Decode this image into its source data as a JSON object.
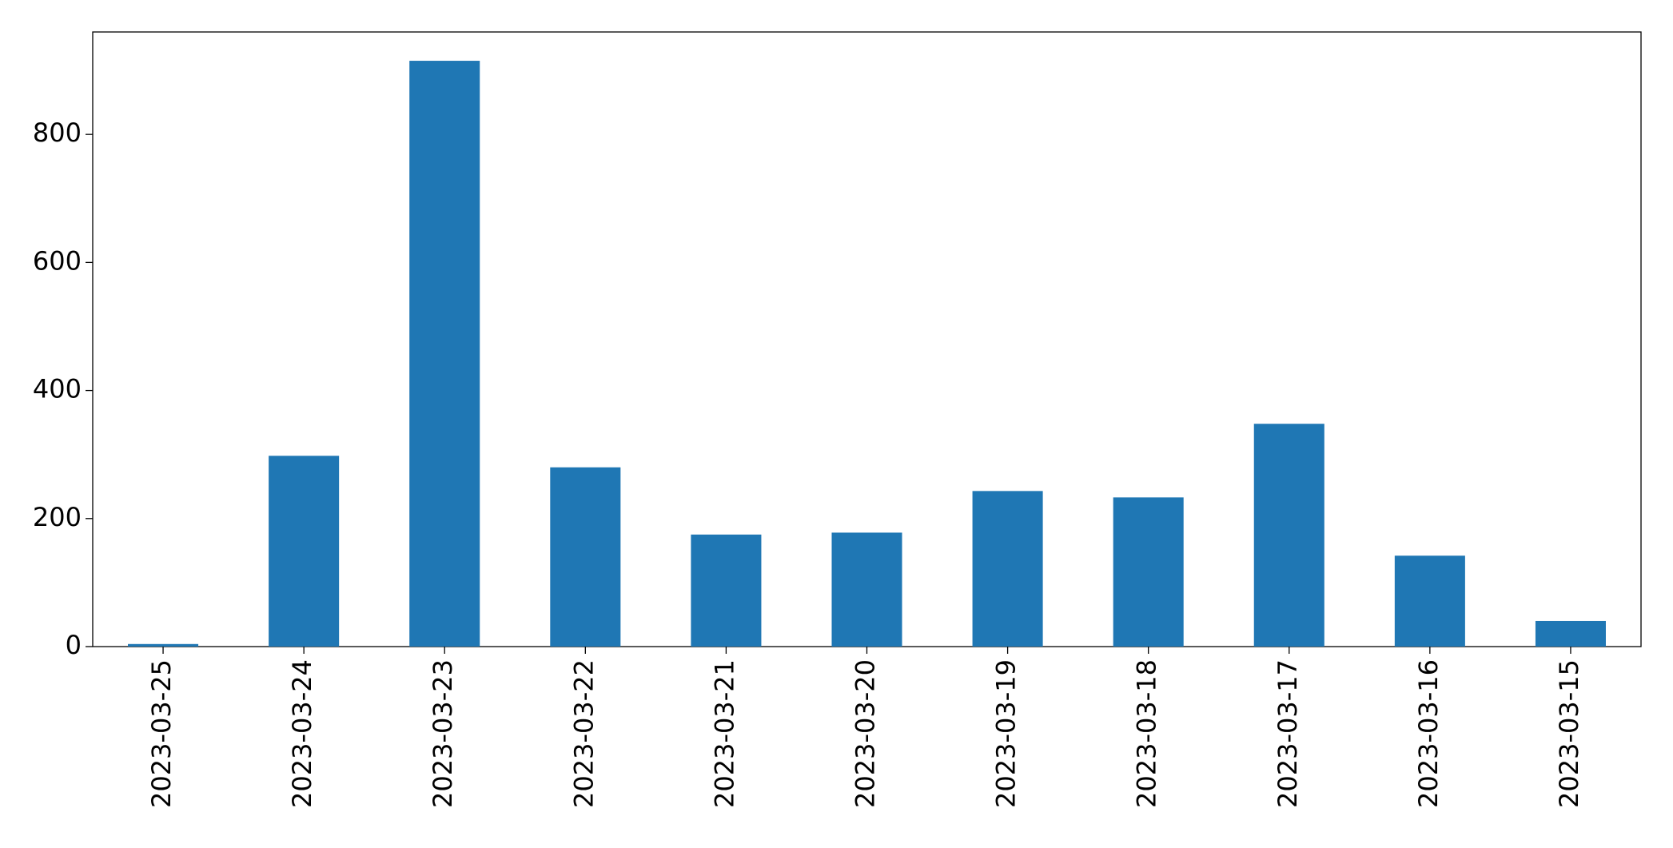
{
  "chart_data": {
    "type": "bar",
    "categories": [
      "2023-03-25",
      "2023-03-24",
      "2023-03-23",
      "2023-03-22",
      "2023-03-21",
      "2023-03-20",
      "2023-03-19",
      "2023-03-18",
      "2023-03-17",
      "2023-03-16",
      "2023-03-15"
    ],
    "values": [
      4,
      298,
      915,
      280,
      175,
      178,
      243,
      233,
      348,
      142,
      40
    ],
    "color": "#1f77b4",
    "ylim": [
      0,
      960
    ],
    "yticks": [
      0,
      200,
      400,
      600,
      800
    ],
    "grid": false
  }
}
